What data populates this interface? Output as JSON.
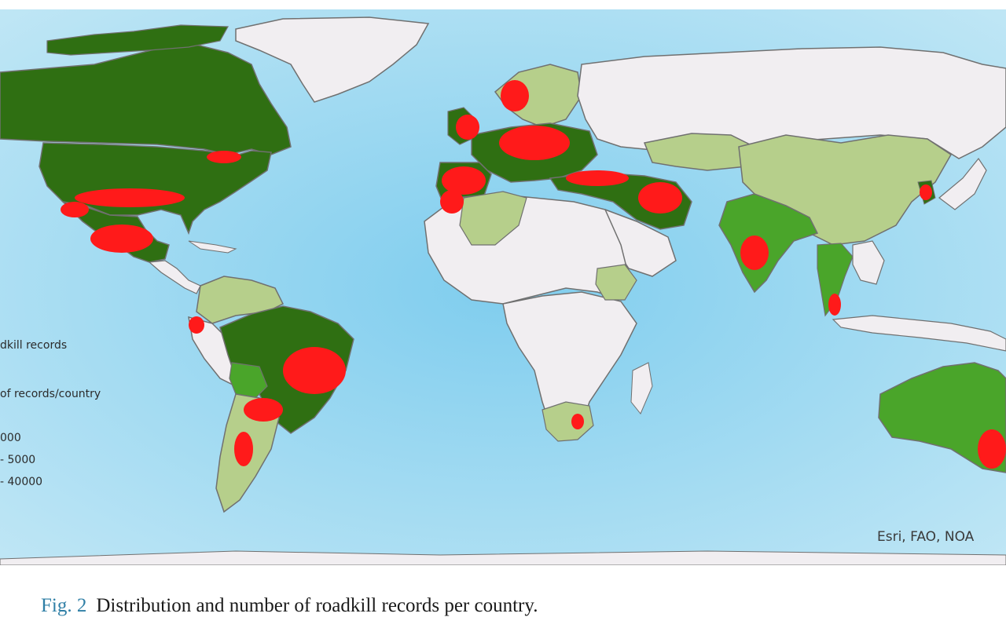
{
  "map": {
    "legend": {
      "title": "dkill records",
      "subtitle": "of records/country",
      "classes": [
        {
          "label": "000",
          "color": "#b6cf8b"
        },
        {
          "label": "- 5000",
          "color": "#4aa52a"
        },
        {
          "label": "- 40000",
          "color": "#2f6f12"
        }
      ],
      "record_color": "#ff1a1a"
    },
    "attribution": "Esri, FAO, NOA",
    "colors": {
      "ocean": "#a8dcf0",
      "ocean_deep": "#6ec2e8",
      "no_data_land": "#f1eef1",
      "border": "#707070"
    }
  },
  "caption": {
    "fig_label": "Fig. 2",
    "text": "Distribution and number of roadkill records per country."
  }
}
